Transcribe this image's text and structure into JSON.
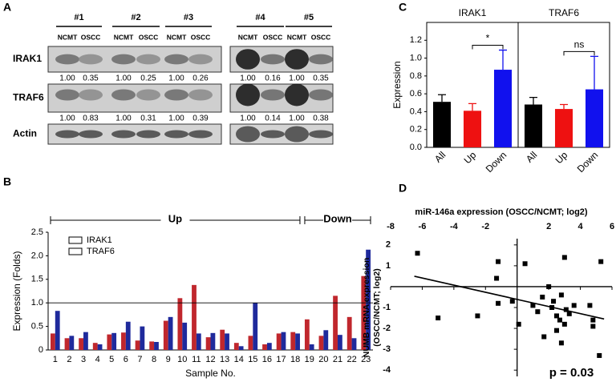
{
  "panel_labels": [
    "A",
    "B",
    "C",
    "D"
  ],
  "blot": {
    "groups": [
      "#1",
      "#2",
      "#3",
      "#4",
      "#5"
    ],
    "lanes": [
      "NCMT",
      "OSCC"
    ],
    "rows": [
      {
        "name": "IRAK1",
        "ratios": [
          "1.00",
          "0.35",
          "1.00",
          "0.25",
          "1.00",
          "0.26",
          "1.00",
          "0.16",
          "1.00",
          "0.35"
        ]
      },
      {
        "name": "TRAF6",
        "ratios": [
          "1.00",
          "0.83",
          "1.00",
          "0.31",
          "1.00",
          "0.39",
          "1.00",
          "0.14",
          "1.00",
          "0.38"
        ]
      },
      {
        "name": "Actin"
      }
    ]
  },
  "chart_data": [
    {
      "type": "bar",
      "xlabel": "Sample No.",
      "ylabel": "Expression (Folds)",
      "categories": [
        "1",
        "2",
        "3",
        "4",
        "5",
        "6",
        "7",
        "8",
        "9",
        "10",
        "11",
        "12",
        "13",
        "14",
        "15",
        "16",
        "17",
        "18",
        "19",
        "20",
        "21",
        "22",
        "23"
      ],
      "series": [
        {
          "name": "IRAK1",
          "color": "#c0272d",
          "values": [
            0.35,
            0.25,
            0.25,
            0.15,
            0.33,
            0.37,
            0.2,
            0.18,
            0.62,
            1.1,
            1.38,
            0.27,
            0.43,
            0.15,
            0.3,
            0.12,
            0.35,
            0.38,
            0.65,
            0.3,
            1.15,
            0.7,
            1.57
          ]
        },
        {
          "name": "TRAF6",
          "color": "#1f2a9c",
          "values": [
            0.83,
            0.3,
            0.38,
            0.12,
            0.36,
            0.6,
            0.5,
            0.17,
            0.7,
            0.58,
            0.35,
            0.36,
            0.35,
            0.08,
            1.0,
            0.15,
            0.38,
            0.35,
            0.12,
            0.42,
            0.32,
            0.25,
            2.13
          ]
        }
      ],
      "ylim": [
        0,
        2.5
      ],
      "yticks": [
        0,
        0.5,
        {
          "value": 1,
          "label": "1.0"
        },
        1.5,
        {
          "value": 2,
          "label": "2.0"
        },
        2.5
      ],
      "reference_line": 1,
      "groups": [
        {
          "label": "Up",
          "first": "1",
          "last": "18"
        },
        {
          "label": "Down",
          "first": "19",
          "last": "23"
        }
      ]
    },
    {
      "type": "bar",
      "ylabel": "Expression",
      "groups": [
        "IRAK1",
        "TRAF6"
      ],
      "categories": [
        "All",
        "Up",
        "Down",
        "All",
        "Up",
        "Down"
      ],
      "values": [
        0.51,
        0.41,
        0.87,
        0.48,
        0.43,
        0.65
      ],
      "errors": [
        0.08,
        0.08,
        0.22,
        0.08,
        0.05,
        0.37
      ],
      "colors": [
        "#000000",
        "#ee1111",
        "#1111ee",
        "#000000",
        "#ee1111",
        "#1111ee"
      ],
      "annotations": [
        "*",
        "ns"
      ],
      "ylim": [
        0,
        1.4
      ],
      "yticks": [
        {
          "value": 0,
          "label": "0.0"
        },
        {
          "value": 0.2,
          "label": "0.2"
        },
        {
          "value": 0.4,
          "label": "0.4"
        },
        {
          "value": 0.6,
          "label": "0.6"
        },
        {
          "value": 0.8,
          "label": "0.8"
        },
        {
          "value": 1,
          "label": "1.0"
        },
        {
          "value": 1.2,
          "label": "1.2"
        }
      ]
    },
    {
      "type": "scatter",
      "xlabel": "miR-146a expression (OSCC/NCMT; log2)",
      "ylabel": [
        "NUMB mRNA expression",
        "(OSCC/NCMT; log2)"
      ],
      "annotation": "p = 0.03",
      "x": [
        -6.3,
        -5,
        -2.5,
        -1.2,
        -1.3,
        -1.2,
        -0.3,
        0.1,
        0.5,
        1,
        1.3,
        1.6,
        2,
        2.2,
        2.3,
        2.5,
        2.7,
        2.8,
        3,
        3,
        3.1,
        1.7,
        2.5,
        2.8,
        3.3,
        3.6,
        4.6,
        4.8,
        5.3,
        5.2,
        4.8
      ],
      "y": [
        1.6,
        -1.5,
        -1.4,
        1.2,
        0.4,
        -0.8,
        -0.7,
        -1.8,
        1.1,
        -0.9,
        -1.2,
        -0.5,
        0,
        -1,
        -0.7,
        -1.4,
        -1.6,
        -0.4,
        -1.8,
        1.4,
        -1.1,
        -2.4,
        -2.1,
        -2.7,
        -1.3,
        -0.9,
        -0.9,
        -1.6,
        1.2,
        -3.3,
        -1.9
      ],
      "regression_line": {
        "x": [
          -6.5,
          5.5
        ],
        "y": [
          0.5,
          -1.55
        ]
      },
      "xlim": [
        -8,
        6
      ],
      "ylim": [
        -4.3,
        2.3
      ],
      "xticks": [
        -8,
        -6,
        -4,
        -2,
        2,
        4,
        6
      ],
      "yticks": [
        -4,
        -3,
        -2,
        -1,
        1,
        2
      ]
    }
  ]
}
